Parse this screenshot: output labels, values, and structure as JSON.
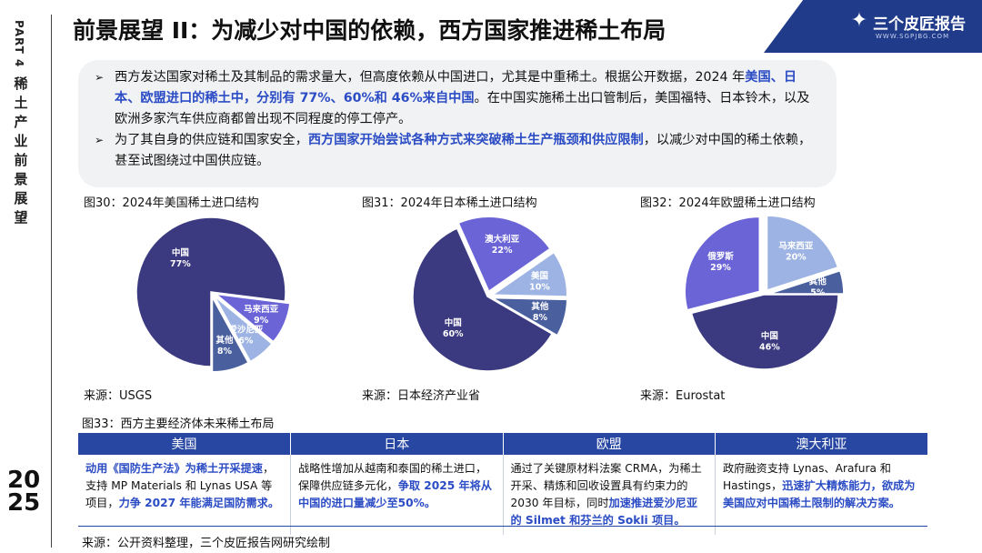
{
  "sidebar": {
    "part": "PART 4",
    "section_title": [
      "稀",
      "土",
      "产",
      "业",
      "前",
      "景",
      "展",
      "望"
    ],
    "year": [
      "20",
      "25"
    ]
  },
  "header": {
    "title": "前景展望 II：为减少对中国的依赖，西方国家推进稀土布局"
  },
  "logo": {
    "text": "三个皮匠报告",
    "sub": "WWW.SGPJBG.COM",
    "mark": "icon-book-mark"
  },
  "bullets": [
    {
      "segments": [
        {
          "text": "西方发达国家对稀土及其制品的需求量大，但高度依赖从中国进口，尤其是中重稀土。根据公开数据，2024 年",
          "hl": false
        },
        {
          "text": "美国、日本、欧盟进口的稀土中，分别有 77%、60%和 46%来自中国",
          "hl": true
        },
        {
          "text": "。在中国实施稀土出口管制后，美国福特、日本铃木，以及欧洲多家汽车供应商都曾出现不同程度的停工停产。",
          "hl": false
        }
      ]
    },
    {
      "segments": [
        {
          "text": "为了其自身的供应链和国家安全，",
          "hl": false
        },
        {
          "text": "西方国家开始尝试各种方式来突破稀土生产瓶颈和供应限制",
          "hl": true
        },
        {
          "text": "，以减少对中国的稀土依赖，甚至试图绕过中国供应链。",
          "hl": false
        }
      ]
    }
  ],
  "colors": {
    "accent": "#2747a3",
    "highlight": "#2b4cc4",
    "slice_dark": "#3b3a80",
    "slice_purple": "#6a64d6",
    "slice_light": "#9db3e3",
    "slice_slate": "#4a5f9e"
  },
  "chart_data": [
    {
      "type": "pie",
      "title": "图30：2024年美国稀土进口结构",
      "source": "来源：USGS",
      "slices": [
        {
          "label": "中国",
          "value": 77,
          "display": "77%"
        },
        {
          "label": "马来西亚",
          "value": 9,
          "display": "9%"
        },
        {
          "label": "爱沙尼亚",
          "value": 6,
          "display": "6%"
        },
        {
          "label": "其他",
          "value": 8,
          "display": "8%"
        }
      ]
    },
    {
      "type": "pie",
      "title": "图31：2024年日本稀土进口结构",
      "source": "来源：日本经济产业省",
      "slices": [
        {
          "label": "中国",
          "value": 60,
          "display": "60%"
        },
        {
          "label": "澳大利亚",
          "value": 22,
          "display": "22%"
        },
        {
          "label": "美国",
          "value": 10,
          "display": "10%"
        },
        {
          "label": "其他",
          "value": 8,
          "display": "8%"
        }
      ]
    },
    {
      "type": "pie",
      "title": "图32：2024年欧盟稀土进口结构",
      "source": "来源：Eurostat",
      "slices": [
        {
          "label": "中国",
          "value": 46,
          "display": "46%"
        },
        {
          "label": "俄罗斯",
          "value": 29,
          "display": "29%"
        },
        {
          "label": "马来西亚",
          "value": 20,
          "display": "20%"
        },
        {
          "label": "其他",
          "value": 5,
          "display": "5%"
        }
      ]
    }
  ],
  "table": {
    "title": "图33：西方主要经济体未来稀土布局",
    "headers": [
      "美国",
      "日本",
      "欧盟",
      "澳大利亚"
    ],
    "cells": [
      [
        {
          "text": "动用《国防生产法》为稀土开采提速",
          "hl": true
        },
        {
          "text": "，支持 MP Materials 和 Lynas USA 等项目，",
          "hl": false
        },
        {
          "text": "力争 2027 年能满足国防需求。",
          "hl": true
        }
      ],
      [
        {
          "text": "战略性增加从越南和泰国的稀土进口，保障供应链多元化，",
          "hl": false
        },
        {
          "text": "争取 2025 年将从中国的进口量减少至50%。",
          "hl": true
        }
      ],
      [
        {
          "text": "通过了关键原材料法案 CRMA，为稀土开采、精炼和回收设置具有约束力的 2030 年目标，同时",
          "hl": false
        },
        {
          "text": "加速推进爱沙尼亚的 Silmet 和芬兰的 Sokli 项目。",
          "hl": true
        }
      ],
      [
        {
          "text": "政府融资支持 Lynas、Arafura 和 Hastings，",
          "hl": false
        },
        {
          "text": "迅速扩大精炼能力，欲成为美国应对中国稀土限制的解决方案。",
          "hl": true
        }
      ]
    ]
  },
  "footer": {
    "source": "来源：公开资料整理，三个皮匠报告网研究绘制"
  }
}
